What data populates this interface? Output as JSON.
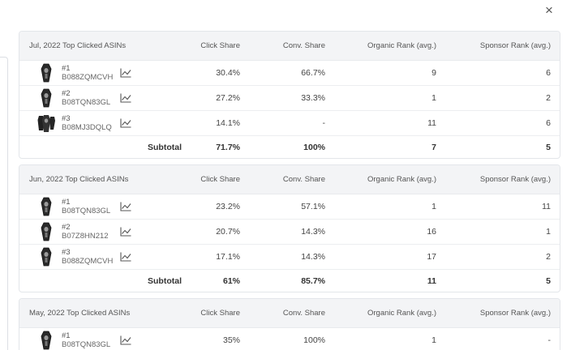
{
  "close_icon": "×",
  "panels": [
    {
      "title": "Jul, 2022 Top Clicked ASINs",
      "columns": [
        "Click Share",
        "Conv. Share",
        "Organic Rank (avg.)",
        "Sponsor Rank (avg.)"
      ],
      "rows": [
        {
          "rank": "#1",
          "asin": "B088ZQMCVH",
          "click": "30.4%",
          "conv": "66.7%",
          "organic": "9",
          "sponsor": "6",
          "thumb": "single"
        },
        {
          "rank": "#2",
          "asin": "B08TQN83GL",
          "click": "27.2%",
          "conv": "33.3%",
          "organic": "1",
          "sponsor": "2",
          "thumb": "single"
        },
        {
          "rank": "#3",
          "asin": "B08MJ3DQLQ",
          "click": "14.1%",
          "conv": "-",
          "organic": "11",
          "sponsor": "6",
          "thumb": "multi"
        }
      ],
      "subtotal": {
        "label": "Subtotal",
        "click": "71.7%",
        "conv": "100%",
        "organic": "7",
        "sponsor": "5"
      }
    },
    {
      "title": "Jun, 2022 Top Clicked ASINs",
      "columns": [
        "Click Share",
        "Conv. Share",
        "Organic Rank (avg.)",
        "Sponsor Rank (avg.)"
      ],
      "rows": [
        {
          "rank": "#1",
          "asin": "B08TQN83GL",
          "click": "23.2%",
          "conv": "57.1%",
          "organic": "1",
          "sponsor": "11",
          "thumb": "single"
        },
        {
          "rank": "#2",
          "asin": "B07Z8HN212",
          "click": "20.7%",
          "conv": "14.3%",
          "organic": "16",
          "sponsor": "1",
          "thumb": "single"
        },
        {
          "rank": "#3",
          "asin": "B088ZQMCVH",
          "click": "17.1%",
          "conv": "14.3%",
          "organic": "17",
          "sponsor": "2",
          "thumb": "single"
        }
      ],
      "subtotal": {
        "label": "Subtotal",
        "click": "61%",
        "conv": "85.7%",
        "organic": "11",
        "sponsor": "5"
      }
    },
    {
      "title": "May, 2022 Top Clicked ASINs",
      "columns": [
        "Click Share",
        "Conv. Share",
        "Organic Rank (avg.)",
        "Sponsor Rank (avg.)"
      ],
      "rows": [
        {
          "rank": "#1",
          "asin": "B08TQN83GL",
          "click": "35%",
          "conv": "100%",
          "organic": "1",
          "sponsor": "-",
          "thumb": "single"
        }
      ]
    }
  ]
}
